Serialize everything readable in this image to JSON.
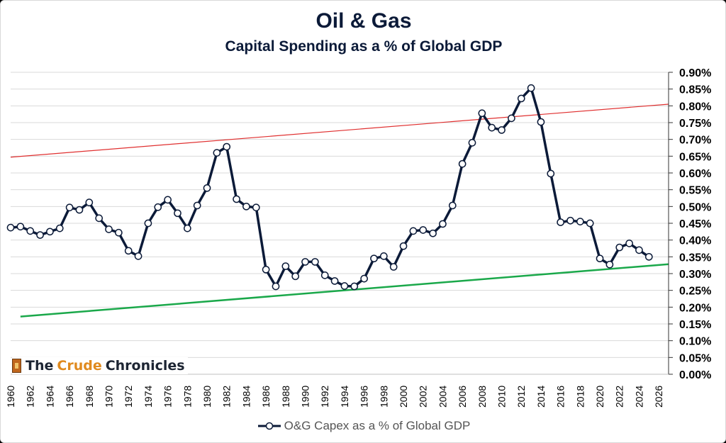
{
  "chart_data": {
    "type": "line",
    "title": "Oil & Gas",
    "subtitle": "Capital Spending as a % of Global GDP",
    "xlim": [
      1960,
      2027
    ],
    "ylim": [
      0,
      0.9
    ],
    "x_ticks": [
      "1960",
      "1962",
      "1964",
      "1966",
      "1968",
      "1970",
      "1972",
      "1974",
      "1976",
      "1978",
      "1980",
      "1982",
      "1984",
      "1986",
      "1988",
      "1990",
      "1992",
      "1994",
      "1996",
      "1998",
      "2000",
      "2002",
      "2004",
      "2006",
      "2008",
      "2010",
      "2012",
      "2014",
      "2016",
      "2018",
      "2020",
      "2022",
      "2024",
      "2026"
    ],
    "y_ticks": [
      "0.00%",
      "0.05%",
      "0.10%",
      "0.15%",
      "0.20%",
      "0.25%",
      "0.30%",
      "0.35%",
      "0.40%",
      "0.45%",
      "0.50%",
      "0.55%",
      "0.60%",
      "0.65%",
      "0.70%",
      "0.75%",
      "0.80%",
      "0.85%",
      "0.90%"
    ],
    "grid": true,
    "legend_position": "bottom",
    "series": [
      {
        "name": "O&G Capex as a % of Global GDP",
        "color": "#0b1a38",
        "x": [
          1960,
          1961,
          1962,
          1963,
          1964,
          1965,
          1966,
          1967,
          1968,
          1969,
          1970,
          1971,
          1972,
          1973,
          1974,
          1975,
          1976,
          1977,
          1978,
          1979,
          1980,
          1981,
          1982,
          1983,
          1984,
          1985,
          1986,
          1987,
          1988,
          1989,
          1990,
          1991,
          1992,
          1993,
          1994,
          1995,
          1996,
          1997,
          1998,
          1999,
          2000,
          2001,
          2002,
          2003,
          2004,
          2005,
          2006,
          2007,
          2008,
          2009,
          2010,
          2011,
          2012,
          2013,
          2014,
          2015,
          2016,
          2017,
          2018,
          2019,
          2020,
          2021,
          2022,
          2023,
          2024,
          2025
        ],
        "values": [
          0.437,
          0.44,
          0.427,
          0.415,
          0.425,
          0.435,
          0.497,
          0.49,
          0.512,
          0.465,
          0.432,
          0.422,
          0.368,
          0.352,
          0.45,
          0.498,
          0.52,
          0.48,
          0.435,
          0.503,
          0.555,
          0.66,
          0.678,
          0.522,
          0.5,
          0.497,
          0.312,
          0.262,
          0.322,
          0.292,
          0.335,
          0.335,
          0.295,
          0.278,
          0.263,
          0.262,
          0.285,
          0.345,
          0.352,
          0.32,
          0.382,
          0.427,
          0.43,
          0.42,
          0.448,
          0.503,
          0.627,
          0.69,
          0.778,
          0.735,
          0.728,
          0.763,
          0.822,
          0.853,
          0.752,
          0.598,
          0.453,
          0.458,
          0.455,
          0.45,
          0.345,
          0.327,
          0.378,
          0.39,
          0.37,
          0.35
        ]
      }
    ],
    "trendlines": [
      {
        "color": "#e03030",
        "x": [
          1960,
          2027
        ],
        "values": [
          0.647,
          0.805
        ]
      },
      {
        "color": "#1aa84a",
        "x": [
          1961,
          2027
        ],
        "values": [
          0.172,
          0.328
        ]
      }
    ],
    "brand": {
      "part1": "The",
      "part2": "Crude",
      "part3": "Chronicles"
    }
  }
}
